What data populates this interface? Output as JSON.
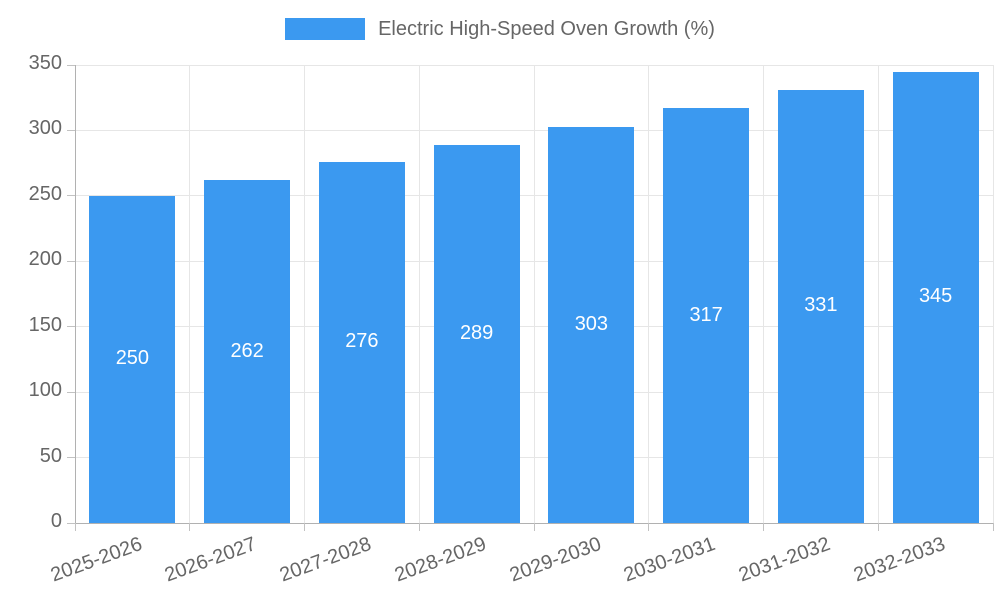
{
  "legend": {
    "label": "Electric High-Speed Oven Growth (%)",
    "swatch_color": "#3B99F0"
  },
  "chart_data": {
    "type": "bar",
    "title": "Electric High-Speed Oven Growth (%)",
    "categories": [
      "2025-2026",
      "2026-2027",
      "2027-2028",
      "2028-2029",
      "2029-2030",
      "2030-2031",
      "2031-2032",
      "2032-2033"
    ],
    "values": [
      250,
      262,
      276,
      289,
      303,
      317,
      331,
      345
    ],
    "value_labels": [
      "250",
      "262",
      "276",
      "289",
      "303",
      "317",
      "331",
      "345"
    ],
    "xlabel": "",
    "ylabel": "",
    "ylim": [
      0,
      350
    ],
    "yticks": [
      0,
      50,
      100,
      150,
      200,
      250,
      300,
      350
    ],
    "grid": true,
    "legend_position": "top",
    "x_label_rotation_deg": -20,
    "colors": {
      "bar": "#3B99F0",
      "value_label": "#ffffff",
      "axis_text": "#666666",
      "gridline": "#e6e6e6",
      "axis_line": "#b1b1b1",
      "tick_mark": "#c2c2c2"
    }
  }
}
